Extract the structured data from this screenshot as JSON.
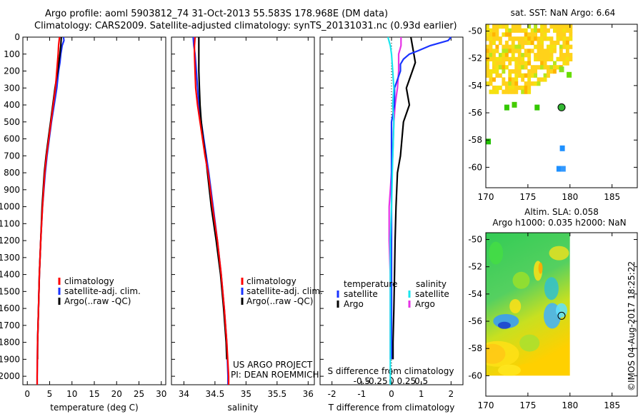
{
  "header": {
    "title": "Argo profile: aoml 5903812_74 31-Oct-2013 55.583S 178.968E (DM data)",
    "subtitle": "Climatology: CARS2009. Satellite-adjusted climatology: synTS_20131031.nc (0.93d earlier)"
  },
  "watermark": "©IMOS 04-Aug-2017 18:25:22",
  "project_note": {
    "line1": "US ARGO PROJECT",
    "line2": "PI: DEAN ROEMMICH"
  },
  "colors": {
    "climatology": "#ff0000",
    "satellite": "#1a33ff",
    "argo": "#000000",
    "sal_satellite": "#19e6ee",
    "sal_argo": "#e633e6"
  },
  "chart_data": [
    {
      "type": "line",
      "name": "temperature-panel",
      "xlabel": "temperature (deg C)",
      "ylabel": "",
      "xlim": [
        -1,
        31
      ],
      "ylim": [
        2050,
        0
      ],
      "xticks": [
        0,
        5,
        10,
        15,
        20,
        25,
        30
      ],
      "yticks": [
        0,
        100,
        200,
        300,
        400,
        500,
        600,
        700,
        800,
        900,
        1000,
        1100,
        1200,
        1300,
        1400,
        1500,
        1600,
        1700,
        1800,
        1900,
        2000
      ],
      "legend": [
        "climatology",
        "satellite-adj. clim.",
        "Argo(..raw -QC)"
      ],
      "series": [
        {
          "name": "climatology",
          "depth": [
            0,
            50,
            100,
            200,
            300,
            400,
            500,
            600,
            700,
            800,
            1000,
            1200,
            1400,
            1600,
            1800,
            2000,
            2050
          ],
          "values": [
            7.2,
            7.0,
            6.9,
            6.6,
            6.3,
            5.8,
            5.3,
            4.8,
            4.3,
            3.9,
            3.4,
            3.0,
            2.7,
            2.5,
            2.3,
            2.2,
            2.2
          ]
        },
        {
          "name": "satellite-adj. clim.",
          "depth": [
            0,
            20,
            50,
            100,
            150,
            200,
            300,
            400,
            500,
            600,
            700,
            800,
            1000,
            1200,
            1400,
            1600,
            1800,
            2000,
            2050
          ],
          "values": [
            8.1,
            8.2,
            7.8,
            7.5,
            7.3,
            7.0,
            6.6,
            6.0,
            5.4,
            4.9,
            4.4,
            4.0,
            3.4,
            3.0,
            2.7,
            2.5,
            2.3,
            2.2,
            2.2
          ]
        },
        {
          "name": "Argo(..raw -QC)",
          "depth": [
            0,
            50,
            100,
            200,
            300,
            400,
            500,
            600,
            700,
            800,
            1000,
            1200,
            1400,
            1600,
            1800,
            1900
          ],
          "values": [
            7.6,
            7.5,
            7.3,
            6.8,
            6.2,
            5.7,
            5.2,
            4.7,
            4.2,
            3.8,
            3.3,
            3.0,
            2.7,
            2.5,
            2.3,
            2.3
          ]
        }
      ]
    },
    {
      "type": "line",
      "name": "salinity-panel",
      "xlabel": "salinity",
      "ylabel": "",
      "xlim": [
        33.8,
        36.1
      ],
      "ylim": [
        2050,
        0
      ],
      "xticks": [
        34,
        34.5,
        35,
        35.5,
        36
      ],
      "legend": [
        "climatology",
        "satellite-adj. clim.",
        "Argo(..raw -QC)"
      ],
      "series": [
        {
          "name": "climatology",
          "depth": [
            0,
            50,
            100,
            200,
            300,
            400,
            500,
            600,
            700,
            800,
            1000,
            1200,
            1400,
            1600,
            1800,
            2000,
            2050
          ],
          "values": [
            34.18,
            34.17,
            34.17,
            34.18,
            34.19,
            34.22,
            34.26,
            34.3,
            34.34,
            34.39,
            34.46,
            34.54,
            34.6,
            34.65,
            34.69,
            34.72,
            34.72
          ]
        },
        {
          "name": "satellite-adj. clim.",
          "depth": [
            0,
            50,
            100,
            200,
            300,
            400,
            500,
            600,
            700,
            800,
            1000,
            1200,
            1400,
            1600,
            1800,
            2000,
            2050
          ],
          "values": [
            34.15,
            34.16,
            34.18,
            34.2,
            34.22,
            34.24,
            34.28,
            34.32,
            34.36,
            34.4,
            34.47,
            34.54,
            34.6,
            34.65,
            34.69,
            34.71,
            34.71
          ]
        },
        {
          "name": "Argo(..raw -QC)",
          "depth": [
            0,
            50,
            100,
            200,
            300,
            400,
            500,
            600,
            700,
            800,
            1000,
            1200,
            1400,
            1600,
            1800,
            1900
          ],
          "values": [
            34.24,
            34.24,
            34.24,
            34.24,
            34.25,
            34.26,
            34.28,
            34.31,
            34.35,
            34.38,
            34.44,
            34.52,
            34.59,
            34.64,
            34.68,
            34.69
          ]
        }
      ]
    },
    {
      "type": "line",
      "name": "difference-panel",
      "xlabel": "T difference from climatology",
      "xlabel_top": "S difference from climatology",
      "xlim": [
        -2.4,
        2.4
      ],
      "ylim": [
        2050,
        0
      ],
      "xticks": [
        -2,
        -1,
        0,
        1,
        2
      ],
      "xticks_top": [
        "-0.5",
        "-0.25",
        "0",
        "0.25",
        "0.5"
      ],
      "legend_headers": [
        "temperature",
        "salinity"
      ],
      "legend": [
        "satellite",
        "Argo",
        "satellite",
        "Argo"
      ],
      "series": [
        {
          "name": "T satellite",
          "depth": [
            0,
            20,
            50,
            80,
            100,
            130,
            160,
            200,
            300,
            400,
            500,
            700,
            1000,
            1400,
            1800,
            1900
          ],
          "values": [
            2.0,
            1.9,
            1.3,
            0.9,
            0.6,
            0.4,
            0.3,
            0.3,
            0.1,
            0.1,
            0.0,
            0.0,
            0.0,
            0.0,
            0.0,
            0.0
          ]
        },
        {
          "name": "T Argo",
          "depth": [
            0,
            50,
            100,
            150,
            200,
            300,
            400,
            500,
            600,
            700,
            800,
            1000,
            1200,
            1400,
            1600,
            1800,
            1900
          ],
          "values": [
            0.65,
            0.7,
            0.75,
            0.8,
            0.7,
            0.5,
            0.6,
            0.4,
            0.35,
            0.3,
            0.2,
            0.15,
            0.12,
            0.1,
            0.08,
            0.05,
            0.05
          ]
        },
        {
          "name": "S satellite",
          "depth": [
            0,
            50,
            100,
            200,
            300,
            400,
            500,
            700,
            1000,
            1200,
            1400,
            1800,
            2050
          ],
          "values": [
            -0.03,
            -0.01,
            0.0,
            0.01,
            0.02,
            0.01,
            0.02,
            0.01,
            0.0,
            -0.01,
            -0.01,
            -0.01,
            -0.01
          ]
        },
        {
          "name": "S Argo",
          "depth": [
            0,
            50,
            100,
            200,
            300,
            400,
            500,
            700,
            1000,
            1200,
            1400,
            1800,
            1900
          ],
          "values": [
            0.08,
            0.08,
            0.06,
            0.06,
            0.05,
            0.03,
            0.02,
            0.01,
            -0.02,
            -0.02,
            -0.01,
            -0.01,
            -0.01
          ]
        }
      ]
    },
    {
      "type": "heatmap",
      "name": "sst-map",
      "title": "sat. SST: NaN Argo: 6.64",
      "xlim": [
        170,
        188
      ],
      "ylim": [
        -61.5,
        -49.5
      ],
      "xticks": [
        170,
        175,
        180,
        185
      ],
      "yticks": [
        -50,
        -52,
        -54,
        -56,
        -58,
        -60
      ],
      "marker": {
        "lon": 179,
        "lat": -55.6
      }
    },
    {
      "type": "heatmap",
      "name": "sla-map",
      "title": "Altim. SLA: 0.058",
      "subtitle": "Argo h1000: 0.035 h2000: NaN",
      "xlim": [
        170,
        188
      ],
      "ylim": [
        -61.5,
        -49.5
      ],
      "xticks": [
        170,
        175,
        180,
        185
      ],
      "yticks": [
        -50,
        -52,
        -54,
        -56,
        -58,
        -60
      ],
      "marker": {
        "lon": 179,
        "lat": -55.6
      }
    }
  ]
}
